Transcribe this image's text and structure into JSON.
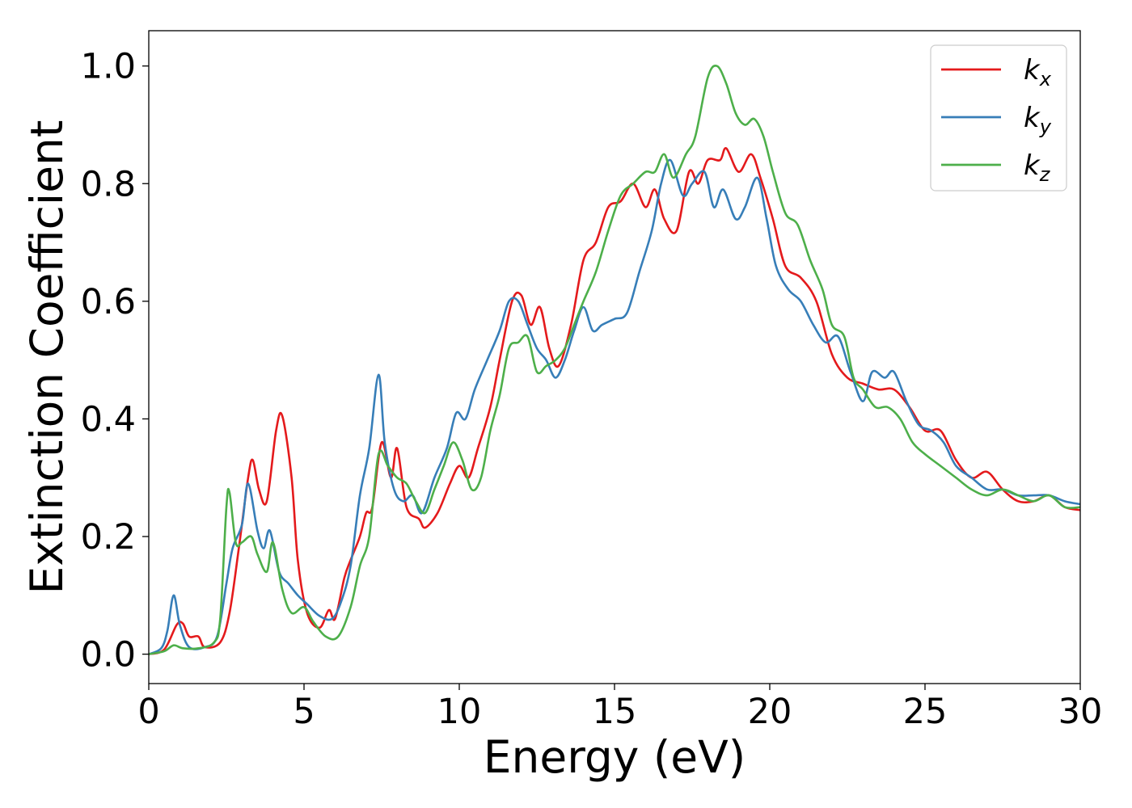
{
  "chart_data": {
    "type": "line",
    "title": "",
    "xlabel": "Energy (eV)",
    "ylabel": "Extinction Coefficient",
    "xlim": [
      0,
      30
    ],
    "ylim": [
      -0.05,
      1.06
    ],
    "xticks": [
      0,
      5,
      10,
      15,
      20,
      25,
      30
    ],
    "xtick_labels": [
      "0",
      "5",
      "10",
      "15",
      "20",
      "25",
      "30"
    ],
    "yticks": [
      0.0,
      0.2,
      0.4,
      0.6,
      0.8,
      1.0
    ],
    "ytick_labels": [
      "0.0",
      "0.2",
      "0.4",
      "0.6",
      "0.8",
      "1.0"
    ],
    "grid": false,
    "legend_position": "top-right",
    "series": [
      {
        "name": "k_x",
        "label_main": "k",
        "label_sub": "x",
        "color": "#e41a1c",
        "points": [
          [
            0,
            0
          ],
          [
            0.5,
            0.008
          ],
          [
            0.9,
            0.05
          ],
          [
            1.1,
            0.052
          ],
          [
            1.3,
            0.03
          ],
          [
            1.6,
            0.03
          ],
          [
            1.8,
            0.012
          ],
          [
            2.3,
            0.02
          ],
          [
            2.6,
            0.07
          ],
          [
            2.9,
            0.18
          ],
          [
            3.2,
            0.3
          ],
          [
            3.35,
            0.33
          ],
          [
            3.55,
            0.28
          ],
          [
            3.8,
            0.26
          ],
          [
            4.1,
            0.38
          ],
          [
            4.3,
            0.405
          ],
          [
            4.6,
            0.3
          ],
          [
            4.8,
            0.16
          ],
          [
            5.1,
            0.07
          ],
          [
            5.5,
            0.045
          ],
          [
            5.8,
            0.075
          ],
          [
            6.0,
            0.06
          ],
          [
            6.3,
            0.13
          ],
          [
            6.5,
            0.16
          ],
          [
            6.8,
            0.2
          ],
          [
            7.0,
            0.24
          ],
          [
            7.2,
            0.25
          ],
          [
            7.5,
            0.36
          ],
          [
            7.8,
            0.3
          ],
          [
            8.0,
            0.35
          ],
          [
            8.3,
            0.25
          ],
          [
            8.7,
            0.23
          ],
          [
            8.9,
            0.215
          ],
          [
            9.3,
            0.24
          ],
          [
            9.7,
            0.29
          ],
          [
            10.0,
            0.32
          ],
          [
            10.3,
            0.3
          ],
          [
            10.6,
            0.35
          ],
          [
            11.0,
            0.42
          ],
          [
            11.3,
            0.5
          ],
          [
            11.7,
            0.6
          ],
          [
            12.0,
            0.61
          ],
          [
            12.3,
            0.56
          ],
          [
            12.6,
            0.59
          ],
          [
            12.9,
            0.52
          ],
          [
            13.2,
            0.49
          ],
          [
            13.6,
            0.56
          ],
          [
            14.0,
            0.67
          ],
          [
            14.4,
            0.7
          ],
          [
            14.8,
            0.76
          ],
          [
            15.2,
            0.77
          ],
          [
            15.6,
            0.8
          ],
          [
            16.0,
            0.76
          ],
          [
            16.3,
            0.79
          ],
          [
            16.6,
            0.74
          ],
          [
            17.0,
            0.72
          ],
          [
            17.4,
            0.82
          ],
          [
            17.7,
            0.8
          ],
          [
            18.0,
            0.84
          ],
          [
            18.4,
            0.84
          ],
          [
            18.6,
            0.86
          ],
          [
            19.0,
            0.82
          ],
          [
            19.4,
            0.85
          ],
          [
            19.7,
            0.81
          ],
          [
            20.1,
            0.74
          ],
          [
            20.5,
            0.66
          ],
          [
            21.0,
            0.64
          ],
          [
            21.5,
            0.6
          ],
          [
            22.0,
            0.51
          ],
          [
            22.5,
            0.47
          ],
          [
            23.0,
            0.46
          ],
          [
            23.5,
            0.45
          ],
          [
            24.0,
            0.45
          ],
          [
            24.5,
            0.42
          ],
          [
            25.0,
            0.38
          ],
          [
            25.5,
            0.38
          ],
          [
            26.0,
            0.33
          ],
          [
            26.5,
            0.3
          ],
          [
            27.0,
            0.31
          ],
          [
            27.5,
            0.28
          ],
          [
            28.0,
            0.26
          ],
          [
            28.5,
            0.26
          ],
          [
            29.0,
            0.27
          ],
          [
            29.5,
            0.25
          ],
          [
            30.0,
            0.245
          ]
        ]
      },
      {
        "name": "k_y",
        "label_main": "k",
        "label_sub": "y",
        "color": "#377eb8",
        "points": [
          [
            0,
            0
          ],
          [
            0.4,
            0.01
          ],
          [
            0.6,
            0.04
          ],
          [
            0.8,
            0.1
          ],
          [
            1.0,
            0.05
          ],
          [
            1.3,
            0.012
          ],
          [
            1.8,
            0.012
          ],
          [
            2.2,
            0.03
          ],
          [
            2.5,
            0.12
          ],
          [
            2.7,
            0.18
          ],
          [
            3.0,
            0.22
          ],
          [
            3.2,
            0.29
          ],
          [
            3.5,
            0.21
          ],
          [
            3.7,
            0.18
          ],
          [
            3.9,
            0.21
          ],
          [
            4.2,
            0.14
          ],
          [
            4.5,
            0.12
          ],
          [
            4.8,
            0.1
          ],
          [
            5.1,
            0.085
          ],
          [
            5.5,
            0.065
          ],
          [
            5.9,
            0.06
          ],
          [
            6.2,
            0.09
          ],
          [
            6.5,
            0.15
          ],
          [
            6.8,
            0.27
          ],
          [
            7.1,
            0.35
          ],
          [
            7.4,
            0.475
          ],
          [
            7.6,
            0.36
          ],
          [
            7.9,
            0.28
          ],
          [
            8.2,
            0.26
          ],
          [
            8.5,
            0.27
          ],
          [
            8.8,
            0.24
          ],
          [
            9.2,
            0.3
          ],
          [
            9.6,
            0.35
          ],
          [
            9.9,
            0.41
          ],
          [
            10.2,
            0.4
          ],
          [
            10.5,
            0.45
          ],
          [
            10.9,
            0.5
          ],
          [
            11.3,
            0.55
          ],
          [
            11.6,
            0.6
          ],
          [
            11.9,
            0.6
          ],
          [
            12.2,
            0.56
          ],
          [
            12.5,
            0.52
          ],
          [
            12.8,
            0.5
          ],
          [
            13.1,
            0.47
          ],
          [
            13.4,
            0.5
          ],
          [
            13.7,
            0.55
          ],
          [
            14.0,
            0.59
          ],
          [
            14.3,
            0.55
          ],
          [
            14.6,
            0.56
          ],
          [
            15.0,
            0.57
          ],
          [
            15.4,
            0.58
          ],
          [
            15.8,
            0.65
          ],
          [
            16.2,
            0.72
          ],
          [
            16.5,
            0.8
          ],
          [
            16.8,
            0.84
          ],
          [
            17.2,
            0.78
          ],
          [
            17.5,
            0.8
          ],
          [
            17.9,
            0.82
          ],
          [
            18.2,
            0.76
          ],
          [
            18.5,
            0.79
          ],
          [
            18.9,
            0.74
          ],
          [
            19.2,
            0.76
          ],
          [
            19.6,
            0.81
          ],
          [
            19.9,
            0.74
          ],
          [
            20.2,
            0.66
          ],
          [
            20.6,
            0.62
          ],
          [
            21.0,
            0.6
          ],
          [
            21.4,
            0.56
          ],
          [
            21.8,
            0.53
          ],
          [
            22.2,
            0.54
          ],
          [
            22.6,
            0.48
          ],
          [
            23.0,
            0.43
          ],
          [
            23.3,
            0.48
          ],
          [
            23.7,
            0.47
          ],
          [
            24.0,
            0.48
          ],
          [
            24.4,
            0.43
          ],
          [
            24.8,
            0.39
          ],
          [
            25.2,
            0.38
          ],
          [
            25.6,
            0.36
          ],
          [
            26.0,
            0.32
          ],
          [
            26.5,
            0.3
          ],
          [
            27.0,
            0.28
          ],
          [
            27.5,
            0.28
          ],
          [
            28.0,
            0.27
          ],
          [
            28.5,
            0.27
          ],
          [
            29.0,
            0.27
          ],
          [
            29.5,
            0.26
          ],
          [
            30.0,
            0.255
          ]
        ]
      },
      {
        "name": "k_z",
        "label_main": "k",
        "label_sub": "z",
        "color": "#4daf4a",
        "points": [
          [
            0,
            0
          ],
          [
            0.5,
            0.005
          ],
          [
            0.8,
            0.015
          ],
          [
            1.1,
            0.01
          ],
          [
            1.6,
            0.01
          ],
          [
            2.1,
            0.02
          ],
          [
            2.3,
            0.06
          ],
          [
            2.5,
            0.25
          ],
          [
            2.6,
            0.275
          ],
          [
            2.8,
            0.19
          ],
          [
            3.0,
            0.19
          ],
          [
            3.3,
            0.2
          ],
          [
            3.5,
            0.17
          ],
          [
            3.8,
            0.14
          ],
          [
            4.0,
            0.19
          ],
          [
            4.3,
            0.11
          ],
          [
            4.6,
            0.07
          ],
          [
            5.0,
            0.08
          ],
          [
            5.3,
            0.055
          ],
          [
            5.7,
            0.03
          ],
          [
            6.1,
            0.03
          ],
          [
            6.5,
            0.08
          ],
          [
            6.8,
            0.15
          ],
          [
            7.1,
            0.2
          ],
          [
            7.4,
            0.34
          ],
          [
            7.7,
            0.32
          ],
          [
            8.0,
            0.3
          ],
          [
            8.3,
            0.29
          ],
          [
            8.6,
            0.26
          ],
          [
            8.9,
            0.24
          ],
          [
            9.2,
            0.28
          ],
          [
            9.5,
            0.32
          ],
          [
            9.8,
            0.36
          ],
          [
            10.1,
            0.33
          ],
          [
            10.4,
            0.28
          ],
          [
            10.7,
            0.3
          ],
          [
            11.0,
            0.38
          ],
          [
            11.3,
            0.44
          ],
          [
            11.6,
            0.52
          ],
          [
            11.9,
            0.53
          ],
          [
            12.2,
            0.54
          ],
          [
            12.5,
            0.48
          ],
          [
            12.8,
            0.49
          ],
          [
            13.1,
            0.5
          ],
          [
            13.4,
            0.52
          ],
          [
            13.7,
            0.56
          ],
          [
            14.0,
            0.6
          ],
          [
            14.4,
            0.65
          ],
          [
            14.8,
            0.72
          ],
          [
            15.2,
            0.78
          ],
          [
            15.6,
            0.8
          ],
          [
            16.0,
            0.82
          ],
          [
            16.3,
            0.82
          ],
          [
            16.6,
            0.85
          ],
          [
            16.9,
            0.81
          ],
          [
            17.3,
            0.85
          ],
          [
            17.6,
            0.88
          ],
          [
            18.0,
            0.98
          ],
          [
            18.3,
            1.0
          ],
          [
            18.6,
            0.97
          ],
          [
            18.9,
            0.92
          ],
          [
            19.2,
            0.9
          ],
          [
            19.5,
            0.91
          ],
          [
            19.8,
            0.88
          ],
          [
            20.1,
            0.82
          ],
          [
            20.5,
            0.75
          ],
          [
            20.9,
            0.73
          ],
          [
            21.3,
            0.67
          ],
          [
            21.7,
            0.62
          ],
          [
            22.0,
            0.56
          ],
          [
            22.4,
            0.54
          ],
          [
            22.7,
            0.47
          ],
          [
            23.0,
            0.45
          ],
          [
            23.4,
            0.42
          ],
          [
            23.8,
            0.42
          ],
          [
            24.2,
            0.4
          ],
          [
            24.6,
            0.36
          ],
          [
            25.0,
            0.34
          ],
          [
            25.5,
            0.32
          ],
          [
            26.0,
            0.3
          ],
          [
            26.5,
            0.28
          ],
          [
            27.0,
            0.27
          ],
          [
            27.5,
            0.28
          ],
          [
            28.0,
            0.27
          ],
          [
            28.5,
            0.26
          ],
          [
            29.0,
            0.27
          ],
          [
            29.5,
            0.25
          ],
          [
            30.0,
            0.25
          ]
        ]
      }
    ]
  }
}
